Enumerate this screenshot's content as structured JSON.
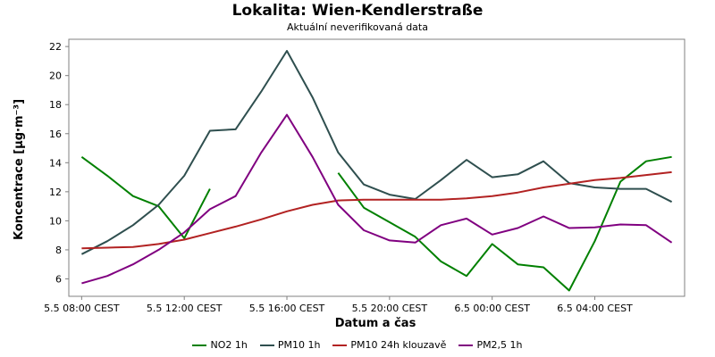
{
  "title": "Lokalita: Wien-Kendlerstraße",
  "subtitle": "Aktuální neverifikovaná data",
  "chart_data": {
    "type": "line",
    "xlabel": "Datum a čas",
    "ylabel": "Koncentrace [µg·m⁻³]",
    "x": [
      "5.5 08:00",
      "5.5 09:00",
      "5.5 10:00",
      "5.5 11:00",
      "5.5 12:00",
      "5.5 13:00",
      "5.5 14:00",
      "5.5 15:00",
      "5.5 16:00",
      "5.5 17:00",
      "5.5 18:00",
      "5.5 19:00",
      "5.5 20:00",
      "5.5 21:00",
      "5.5 22:00",
      "5.5 23:00",
      "6.5 00:00",
      "6.5 01:00",
      "6.5 02:00",
      "6.5 03:00",
      "6.5 04:00",
      "6.5 05:00",
      "6.5 06:00",
      "6.5 07:00"
    ],
    "x_ticks": [
      "5.5 08:00 CEST",
      "5.5 12:00 CEST",
      "5.5 16:00 CEST",
      "5.5 20:00 CEST",
      "6.5 00:00 CEST",
      "6.5 04:00 CEST"
    ],
    "x_tick_hours": [
      0,
      4,
      8,
      12,
      16,
      20
    ],
    "y_ticks": [
      6,
      8,
      10,
      12,
      14,
      16,
      18,
      20,
      22
    ],
    "ylim": [
      4.8,
      22.5
    ],
    "xlim_hours": [
      -0.5,
      23.5
    ],
    "grid": true,
    "legend_position": "bottom",
    "series": [
      {
        "name": "NO2 1h",
        "color": "#008000",
        "values": [
          14.4,
          13.1,
          11.7,
          11.0,
          8.8,
          12.2,
          null,
          null,
          null,
          null,
          13.3,
          10.9,
          9.9,
          8.9,
          7.2,
          6.2,
          8.4,
          7.0,
          6.8,
          5.2,
          8.6,
          12.7,
          14.1,
          14.4
        ]
      },
      {
        "name": "PM10 1h",
        "color": "#2f4f4f",
        "values": [
          7.7,
          8.6,
          9.7,
          11.1,
          13.1,
          16.2,
          16.3,
          18.9,
          21.7,
          18.5,
          14.7,
          12.5,
          11.8,
          11.5,
          12.8,
          14.2,
          13.0,
          13.2,
          14.1,
          12.6,
          12.3,
          12.2,
          12.2,
          11.3
        ]
      },
      {
        "name": "PM10 24h klouzavě",
        "color": "#b22222",
        "values": [
          8.1,
          8.15,
          8.2,
          8.4,
          8.7,
          9.15,
          9.6,
          10.1,
          10.65,
          11.1,
          11.4,
          11.45,
          11.45,
          11.45,
          11.45,
          11.55,
          11.7,
          11.95,
          12.3,
          12.55,
          12.8,
          12.95,
          13.15,
          13.35
        ]
      },
      {
        "name": "PM2,5 1h",
        "color": "#800080",
        "values": [
          5.7,
          6.2,
          7.0,
          8.0,
          9.2,
          10.8,
          11.7,
          14.7,
          17.3,
          14.4,
          11.1,
          9.35,
          8.65,
          8.5,
          9.7,
          10.15,
          9.05,
          9.5,
          10.3,
          9.5,
          9.55,
          9.75,
          9.7,
          8.5
        ]
      }
    ]
  }
}
